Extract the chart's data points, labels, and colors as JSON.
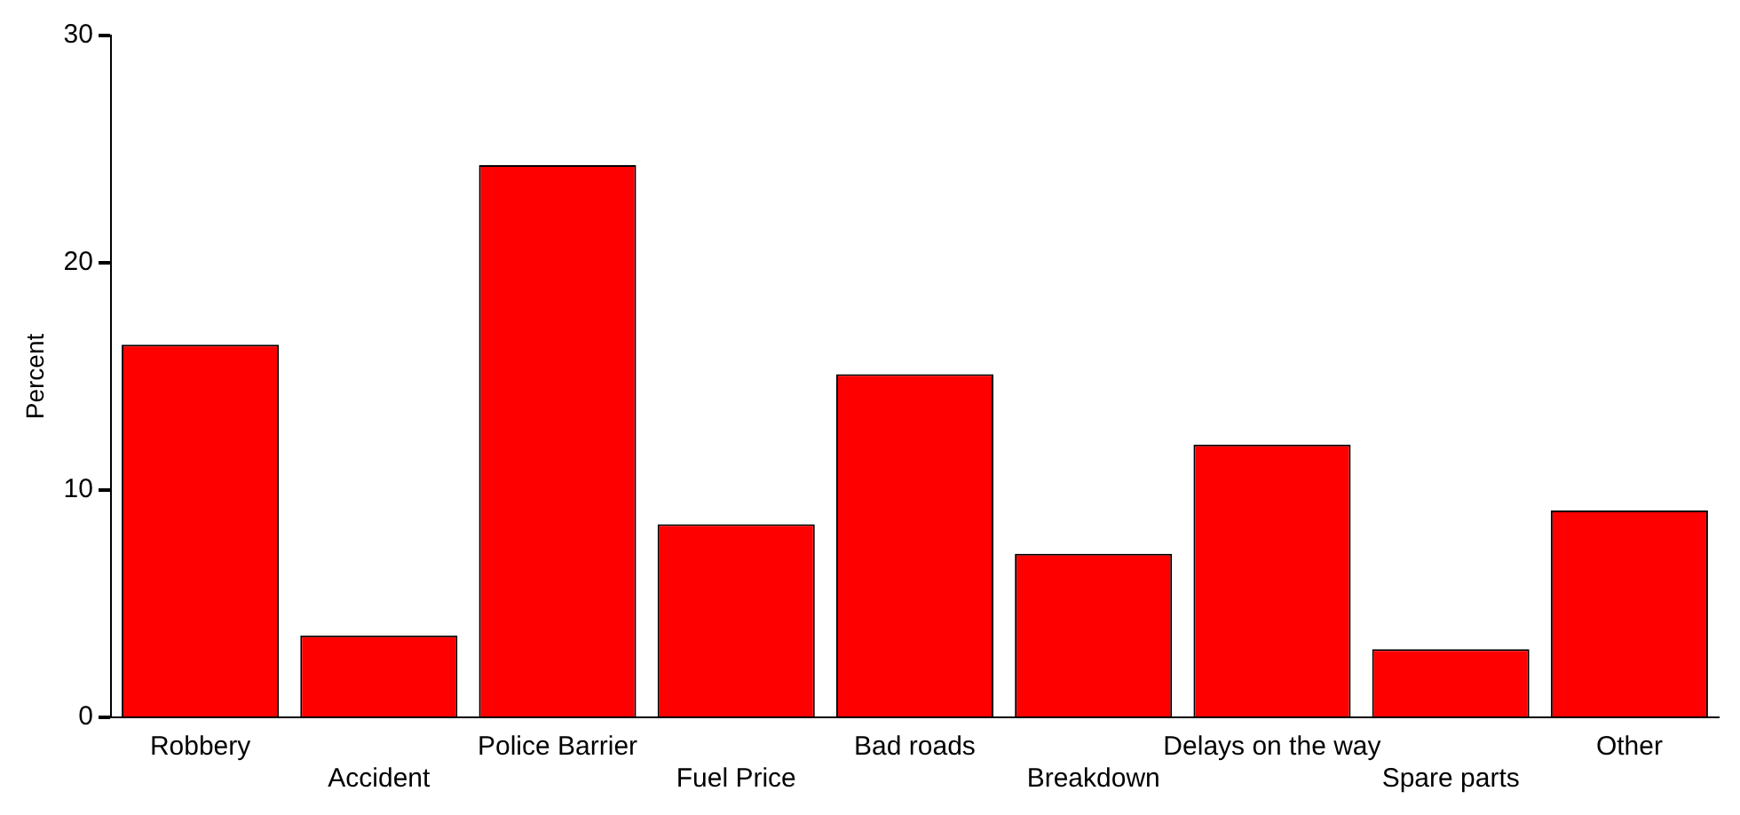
{
  "chart_data": {
    "type": "bar",
    "ylabel": "Percent",
    "categories": [
      "Robbery",
      "Accident",
      "Police Barrier",
      "Fuel Price",
      "Bad roads",
      "Breakdown",
      "Delays on the way",
      "Spare parts",
      "Other"
    ],
    "values": [
      16.4,
      3.6,
      24.3,
      8.5,
      15.1,
      7.2,
      12.0,
      3.0,
      9.1
    ],
    "color": "#ff0000",
    "ylim": [
      0,
      30
    ],
    "yticks": [
      0,
      10,
      20,
      30
    ],
    "grid": false,
    "legend": false
  }
}
